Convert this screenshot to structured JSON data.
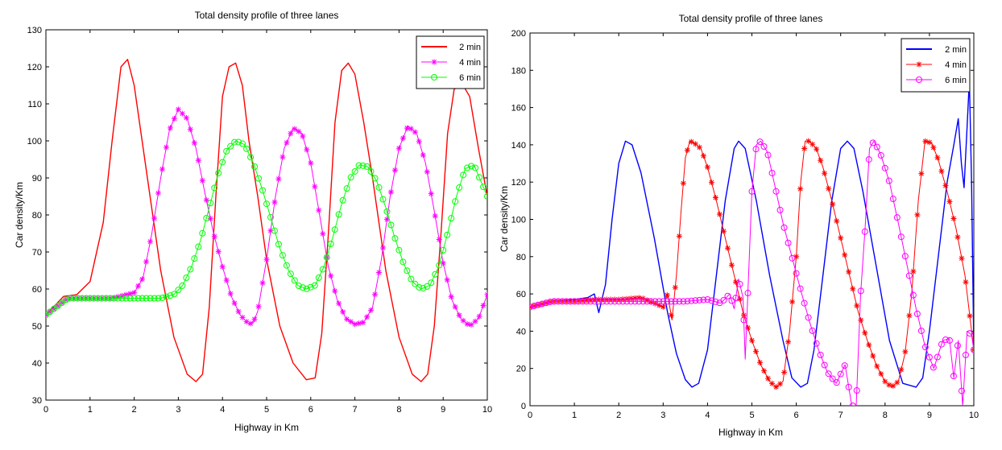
{
  "chart_data": [
    {
      "type": "line",
      "title": "Total density profile of three lanes",
      "xlabel": "Highway in Km",
      "ylabel": "Car density/Km",
      "xlim": [
        0,
        10
      ],
      "ylim": [
        30,
        130
      ],
      "xticks": [
        "0",
        "1",
        "2",
        "3",
        "4",
        "5",
        "6",
        "7",
        "8",
        "9",
        "10"
      ],
      "yticks": [
        "30",
        "40",
        "50",
        "60",
        "70",
        "80",
        "90",
        "100",
        "110",
        "120",
        "130"
      ],
      "grid": false,
      "legend_position": "top-right",
      "series": [
        {
          "name": "2 min",
          "color": "#ff0000",
          "marker": "none",
          "x": [
            0,
            0.4,
            0.7,
            1.0,
            1.3,
            1.5,
            1.7,
            1.85,
            2.0,
            2.3,
            2.6,
            2.9,
            3.2,
            3.4,
            3.55,
            3.7,
            3.85,
            4.0,
            4.15,
            4.3,
            4.45,
            4.6,
            4.8,
            5.0,
            5.3,
            5.6,
            5.9,
            6.1,
            6.25,
            6.4,
            6.55,
            6.7,
            6.85,
            7.0,
            7.2,
            7.4,
            7.7,
            8.0,
            8.3,
            8.5,
            8.65,
            8.8,
            8.95,
            9.1,
            9.25,
            9.45,
            9.6,
            9.8,
            10.0
          ],
          "y": [
            53,
            58,
            58.5,
            62,
            78,
            100,
            120,
            122,
            115,
            90,
            65,
            47,
            37,
            35,
            37,
            55,
            85,
            112,
            120,
            121,
            115,
            100,
            85,
            68,
            50,
            40,
            35.5,
            36,
            48,
            75,
            105,
            119,
            121,
            118,
            105,
            90,
            65,
            47,
            37,
            35,
            37,
            50,
            75,
            102,
            114,
            115,
            112,
            98,
            85
          ]
        },
        {
          "name": "4 min",
          "color": "#ff00ff",
          "marker": "star",
          "x": [
            0,
            0.5,
            1.0,
            1.5,
            2.0,
            2.2,
            2.4,
            2.6,
            2.8,
            3.0,
            3.2,
            3.4,
            3.6,
            3.8,
            4.0,
            4.2,
            4.4,
            4.6,
            4.7,
            4.8,
            5.0,
            5.2,
            5.4,
            5.6,
            5.8,
            6.0,
            6.2,
            6.4,
            6.6,
            6.8,
            7.0,
            7.2,
            7.4,
            7.6,
            7.8,
            8.0,
            8.2,
            8.4,
            8.6,
            8.8,
            9.0,
            9.2,
            9.4,
            9.6,
            9.8,
            10.0
          ],
          "y": [
            53,
            57.5,
            57.5,
            57.5,
            59,
            63,
            75,
            90,
            103,
            108.5,
            106,
            98,
            86,
            75,
            66,
            58,
            53,
            50.5,
            51,
            54,
            68,
            85,
            98,
            103.5,
            102,
            94,
            80,
            66,
            57,
            52,
            50.5,
            51,
            55,
            68,
            85,
            98,
            104,
            102,
            94,
            81,
            67,
            57,
            52,
            50,
            52,
            58.5
          ]
        },
        {
          "name": "6 min",
          "color": "#00ff00",
          "marker": "circle",
          "x": [
            0,
            0.5,
            1.0,
            2.0,
            2.6,
            2.9,
            3.1,
            3.3,
            3.5,
            3.7,
            3.9,
            4.1,
            4.3,
            4.5,
            4.7,
            4.9,
            5.1,
            5.3,
            5.5,
            5.7,
            5.9,
            6.1,
            6.3,
            6.5,
            6.7,
            6.9,
            7.1,
            7.3,
            7.5,
            7.7,
            7.9,
            8.1,
            8.3,
            8.5,
            8.7,
            8.9,
            9.1,
            9.3,
            9.5,
            9.7,
            10.0
          ],
          "y": [
            53,
            57.5,
            57.5,
            57.5,
            57.5,
            58.5,
            61,
            66,
            73,
            82,
            91,
            97.5,
            100,
            99,
            94,
            87,
            79,
            71,
            65,
            61,
            60,
            61,
            66,
            74,
            83,
            90,
            93.5,
            93,
            89,
            82,
            74,
            67,
            62,
            60,
            61,
            66,
            75,
            85,
            92.5,
            93.5,
            85
          ]
        }
      ]
    },
    {
      "type": "line",
      "title": "Total density profile of three lanes",
      "xlabel": "Highway in Km",
      "ylabel": "Car density/Km",
      "xlim": [
        0,
        10
      ],
      "ylim": [
        0,
        200
      ],
      "xticks": [
        "0",
        "1",
        "2",
        "3",
        "4",
        "5",
        "6",
        "7",
        "8",
        "9",
        "10"
      ],
      "yticks": [
        "0",
        "20",
        "40",
        "60",
        "80",
        "100",
        "120",
        "140",
        "160",
        "180",
        "200"
      ],
      "grid": false,
      "legend_position": "top-right",
      "series": [
        {
          "name": "2 min",
          "color": "#0000ff",
          "marker": "none",
          "x": [
            0,
            0.5,
            1.0,
            1.3,
            1.45,
            1.55,
            1.7,
            1.85,
            2.0,
            2.15,
            2.3,
            2.5,
            2.8,
            3.1,
            3.3,
            3.5,
            3.65,
            3.8,
            4.0,
            4.2,
            4.4,
            4.6,
            4.7,
            4.85,
            5.1,
            5.4,
            5.7,
            5.9,
            6.1,
            6.25,
            6.4,
            6.6,
            6.8,
            7.0,
            7.15,
            7.3,
            7.5,
            7.8,
            8.1,
            8.4,
            8.7,
            8.85,
            9.0,
            9.2,
            9.4,
            9.55,
            9.65,
            9.72,
            9.78,
            9.85,
            9.9,
            9.95,
            10.0
          ],
          "y": [
            53,
            56,
            57,
            58,
            60,
            50,
            65,
            100,
            130,
            142,
            140,
            125,
            90,
            50,
            28,
            14,
            10,
            12,
            30,
            70,
            110,
            138,
            142,
            138,
            110,
            70,
            35,
            15,
            10,
            12,
            30,
            70,
            110,
            138,
            142,
            138,
            115,
            75,
            35,
            12,
            10,
            15,
            40,
            80,
            120,
            140,
            154,
            130,
            117,
            150,
            175,
            120,
            30
          ]
        },
        {
          "name": "4 min",
          "color": "#ff0000",
          "marker": "star",
          "x": [
            0,
            0.5,
            1.0,
            1.5,
            2.0,
            2.5,
            2.8,
            3.0,
            3.1,
            3.2,
            3.3,
            3.4,
            3.5,
            3.6,
            3.7,
            3.85,
            4.0,
            4.2,
            4.4,
            4.6,
            4.8,
            5.0,
            5.2,
            5.4,
            5.55,
            5.7,
            5.85,
            6.0,
            6.1,
            6.2,
            6.3,
            6.45,
            6.6,
            6.8,
            7.0,
            7.2,
            7.4,
            7.6,
            7.8,
            8.0,
            8.15,
            8.3,
            8.45,
            8.6,
            8.75,
            8.9,
            9.05,
            9.2,
            9.4,
            9.6,
            9.8,
            10.0
          ],
          "y": [
            53,
            56,
            56,
            57,
            57,
            58,
            55,
            53,
            60,
            46,
            70,
            103,
            133,
            142,
            141,
            138,
            128,
            110,
            90,
            70,
            50,
            35,
            22,
            13,
            10,
            13,
            40,
            80,
            120,
            142,
            142,
            138,
            128,
            110,
            90,
            70,
            50,
            35,
            22,
            13,
            10,
            13,
            28,
            60,
            110,
            142,
            141,
            132,
            115,
            95,
            70,
            30
          ]
        },
        {
          "name": "6 min",
          "color": "#ff00ff",
          "marker": "circle",
          "x": [
            0,
            0.5,
            1.0,
            2.0,
            3.0,
            3.5,
            4.0,
            4.3,
            4.5,
            4.6,
            4.7,
            4.8,
            4.85,
            4.9,
            5.0,
            5.1,
            5.2,
            5.35,
            5.5,
            5.7,
            5.9,
            6.1,
            6.3,
            6.5,
            6.7,
            6.9,
            7.1,
            7.25,
            7.35,
            7.45,
            7.55,
            7.65,
            7.75,
            7.9,
            8.1,
            8.3,
            8.5,
            8.7,
            8.9,
            9.1,
            9.3,
            9.45,
            9.55,
            9.65,
            9.75,
            9.85,
            9.95,
            10.0
          ],
          "y": [
            53,
            56,
            56,
            56,
            56,
            56,
            57,
            55,
            60,
            52,
            68,
            58,
            25,
            55,
            115,
            140,
            142,
            136,
            120,
            98,
            80,
            62,
            45,
            30,
            18,
            12,
            22,
            0,
            0,
            60,
            95,
            138,
            142,
            135,
            120,
            98,
            75,
            52,
            32,
            20,
            35,
            36,
            15,
            35,
            0,
            40,
            38,
            30
          ]
        }
      ]
    }
  ]
}
